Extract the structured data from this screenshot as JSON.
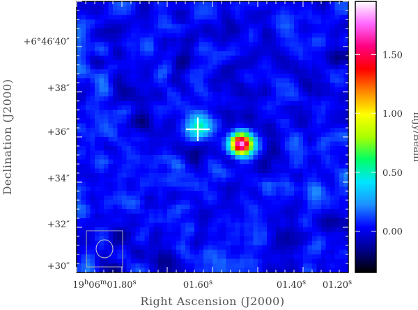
{
  "chart_data": {
    "type": "heatmap",
    "title": "",
    "xlabel": "Right Ascension (J2000)",
    "ylabel": "Declination (J2000)",
    "colorbar_label": "mJy/Beam",
    "x_axis": {
      "direction": "decreasing-left-to-right",
      "ticks": [
        {
          "value": "19h06m01.80s",
          "parts": [
            "19",
            "h",
            "06",
            "m",
            "01.80",
            "s"
          ]
        },
        {
          "value": "01.60s",
          "parts": [
            "01.60",
            "s"
          ]
        },
        {
          "value": "01.40s",
          "parts": [
            "01.40",
            "s"
          ]
        },
        {
          "value": "01.20s",
          "parts": [
            "01.20",
            "s"
          ]
        }
      ]
    },
    "y_axis": {
      "ticks": [
        {
          "label": "+6°46′40″",
          "value_arcsec": 40
        },
        {
          "label": "+38″",
          "value_arcsec": 38
        },
        {
          "label": "+36″",
          "value_arcsec": 36
        },
        {
          "label": "+34″",
          "value_arcsec": 34
        },
        {
          "label": "+32″",
          "value_arcsec": 32
        },
        {
          "label": "+30″",
          "value_arcsec": 30
        }
      ]
    },
    "colorbar": {
      "range": [
        -0.35,
        1.95
      ],
      "ticks": [
        {
          "label": "1.50",
          "value": 1.5
        },
        {
          "label": "1.00",
          "value": 1.0
        },
        {
          "label": "0.50",
          "value": 0.5
        },
        {
          "label": "0.00",
          "value": 0.0
        }
      ],
      "colormap": [
        "#000000",
        "#00008b",
        "#0000ff",
        "#1e90ff",
        "#00e5ff",
        "#00ff66",
        "#aaff00",
        "#ffff00",
        "#ff8800",
        "#ff0000",
        "#ff0080",
        "#ff66ff",
        "#ffffff"
      ]
    },
    "sources": [
      {
        "name": "compact source",
        "peak_mJy_per_beam": 1.85
      },
      {
        "name": "faint extended emission at cross",
        "peak_mJy_per_beam": 0.6
      }
    ],
    "marker": {
      "type": "cross",
      "color": "#ffffff"
    },
    "beam": {
      "shape": "ellipse",
      "color": "#cccccc"
    }
  }
}
